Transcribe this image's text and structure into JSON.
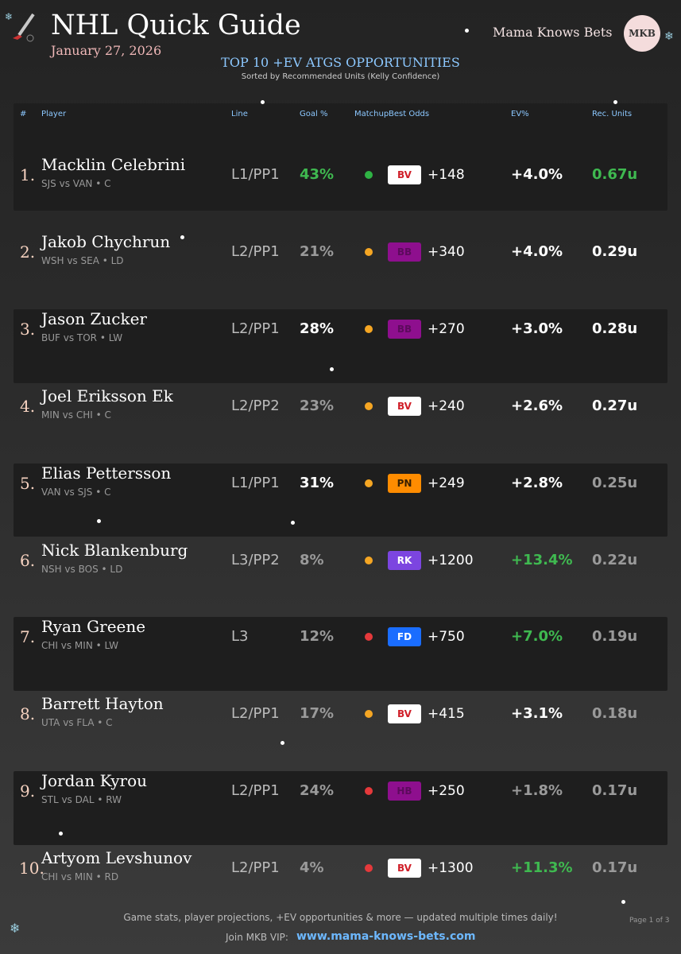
{
  "header": {
    "title": "NHL Quick Guide",
    "date": "January 27, 2026",
    "brand": "Mama Knows Bets",
    "logo": "MKB"
  },
  "section": {
    "title": "TOP 10 +EV ATGS OPPORTUNITIES",
    "subtitle": "Sorted by Recommended Units (Kelly Confidence)"
  },
  "table": {
    "columns": [
      "#",
      "Player",
      "Line",
      "Goal %",
      "Matchup",
      "Best Odds",
      "EV%",
      "Rec. Units"
    ],
    "rows": [
      {
        "rank": "1.",
        "player": "Macklin Celebrini",
        "matchup": "SJS vs VAN • C",
        "line": "L1/PP1",
        "goal": "43%",
        "book": "BV",
        "odds": "+148",
        "ev": "+4.0%",
        "units": "0.67u",
        "dot": "#2fb344",
        "book_bg": "#ffffff",
        "book_color": "#d0202a",
        "goal_color": "#3fb950",
        "ev_color": "#ffffff",
        "units_color": "#3fb950"
      },
      {
        "rank": "2.",
        "player": "Jakob Chychrun",
        "matchup": "WSH vs SEA • LD",
        "line": "L2/PP1",
        "goal": "21%",
        "book": "BB",
        "odds": "+340",
        "ev": "+4.0%",
        "units": "0.29u",
        "dot": "#f5a623",
        "book_bg": "#8e0f8e",
        "book_color": "#5c0a5c",
        "goal_color": "#9a9a9a",
        "ev_color": "#ffffff",
        "units_color": "#ffffff"
      },
      {
        "rank": "3.",
        "player": "Jason Zucker",
        "matchup": "BUF vs TOR • LW",
        "line": "L2/PP1",
        "goal": "28%",
        "book": "BB",
        "odds": "+270",
        "ev": "+3.0%",
        "units": "0.28u",
        "dot": "#f5a623",
        "book_bg": "#8e0f8e",
        "book_color": "#5c0a5c",
        "goal_color": "#ffffff",
        "ev_color": "#ffffff",
        "units_color": "#ffffff"
      },
      {
        "rank": "4.",
        "player": "Joel Eriksson Ek",
        "matchup": "MIN vs CHI • C",
        "line": "L2/PP2",
        "goal": "23%",
        "book": "BV",
        "odds": "+240",
        "ev": "+2.6%",
        "units": "0.27u",
        "dot": "#f5a623",
        "book_bg": "#ffffff",
        "book_color": "#d0202a",
        "goal_color": "#9a9a9a",
        "ev_color": "#ffffff",
        "units_color": "#ffffff"
      },
      {
        "rank": "5.",
        "player": "Elias Pettersson",
        "matchup": "VAN vs SJS • C",
        "line": "L1/PP1",
        "goal": "31%",
        "book": "PN",
        "odds": "+249",
        "ev": "+2.8%",
        "units": "0.25u",
        "dot": "#f5a623",
        "book_bg": "#ff8c00",
        "book_color": "#3a2000",
        "goal_color": "#ffffff",
        "ev_color": "#ffffff",
        "units_color": "#9a9a9a"
      },
      {
        "rank": "6.",
        "player": "Nick Blankenburg",
        "matchup": "NSH vs BOS • LD",
        "line": "L3/PP2",
        "goal": "8%",
        "book": "RK",
        "odds": "+1200",
        "ev": "+13.4%",
        "units": "0.22u",
        "dot": "#f5a623",
        "book_bg": "#7c45e0",
        "book_color": "#ffffff",
        "goal_color": "#9a9a9a",
        "ev_color": "#3fb950",
        "units_color": "#9a9a9a"
      },
      {
        "rank": "7.",
        "player": "Ryan Greene",
        "matchup": "CHI vs MIN • LW",
        "line": "L3",
        "goal": "12%",
        "book": "FD",
        "odds": "+750",
        "ev": "+7.0%",
        "units": "0.19u",
        "dot": "#e5393b",
        "book_bg": "#1a6dff",
        "book_color": "#ffffff",
        "goal_color": "#9a9a9a",
        "ev_color": "#3fb950",
        "units_color": "#9a9a9a"
      },
      {
        "rank": "8.",
        "player": "Barrett Hayton",
        "matchup": "UTA vs FLA • C",
        "line": "L2/PP1",
        "goal": "17%",
        "book": "BV",
        "odds": "+415",
        "ev": "+3.1%",
        "units": "0.18u",
        "dot": "#f5a623",
        "book_bg": "#ffffff",
        "book_color": "#d0202a",
        "goal_color": "#9a9a9a",
        "ev_color": "#ffffff",
        "units_color": "#9a9a9a"
      },
      {
        "rank": "9.",
        "player": "Jordan Kyrou",
        "matchup": "STL vs DAL • RW",
        "line": "L2/PP1",
        "goal": "24%",
        "book": "HB",
        "odds": "+250",
        "ev": "+1.8%",
        "units": "0.17u",
        "dot": "#e5393b",
        "book_bg": "#8e0f8e",
        "book_color": "#5c0a5c",
        "goal_color": "#9a9a9a",
        "ev_color": "#9a9a9a",
        "units_color": "#9a9a9a"
      },
      {
        "rank": "10.",
        "player": "Artyom Levshunov",
        "matchup": "CHI vs MIN • RD",
        "line": "L2/PP1",
        "goal": "4%",
        "book": "BV",
        "odds": "+1300",
        "ev": "+11.3%",
        "units": "0.17u",
        "dot": "#e5393b",
        "book_bg": "#ffffff",
        "book_color": "#d0202a",
        "goal_color": "#9a9a9a",
        "ev_color": "#3fb950",
        "units_color": "#9a9a9a"
      }
    ]
  },
  "footer": {
    "tagline": "Game stats, player projections, +EV opportunities & more — updated multiple times daily!",
    "cta": "Join MKB VIP:",
    "url": "www.mama-knows-bets.com",
    "page": "Page 1 of 3"
  }
}
